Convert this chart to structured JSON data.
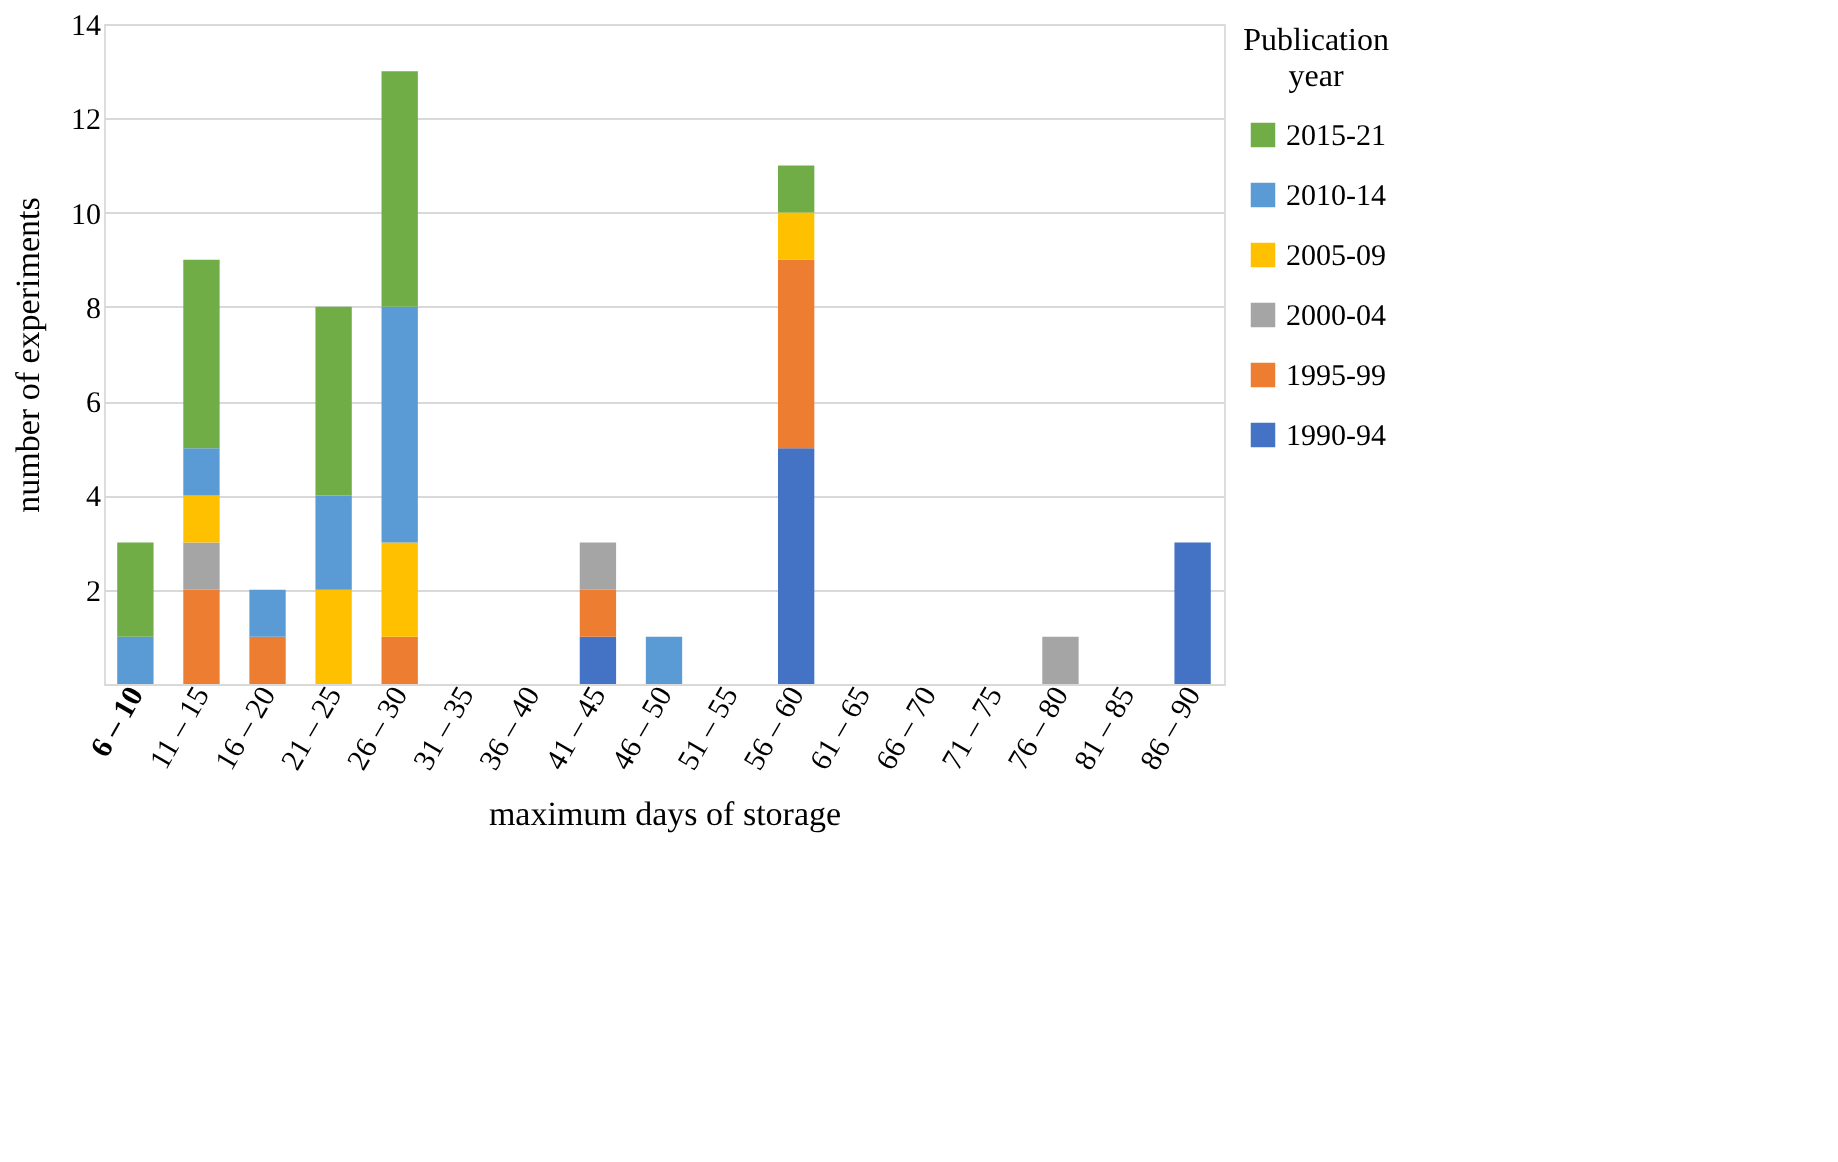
{
  "chart_data": {
    "type": "bar",
    "stacked": true,
    "xlabel": "maximum days of storage",
    "ylabel": "number of experiments",
    "legend_title": "Publication year",
    "legend": "top right",
    "grid": "y",
    "categories": [
      "6 – 10",
      "11 – 15",
      "16 – 20",
      "21 – 25",
      "26 – 30",
      "31 – 35",
      "36 – 40",
      "41 – 45",
      "46 – 50",
      "51 – 55",
      "56 – 60",
      "61 – 65",
      "66 – 70",
      "71 – 75",
      "76 – 80",
      "81 – 85",
      "86 – 90"
    ],
    "ylim": [
      0,
      14
    ],
    "yticks": [
      2,
      4,
      6,
      8,
      10,
      12,
      14
    ],
    "series": [
      {
        "name": "1990-94",
        "color": "#4472c4",
        "values": [
          null,
          null,
          null,
          null,
          null,
          null,
          null,
          1,
          null,
          null,
          5,
          null,
          null,
          null,
          null,
          null,
          3
        ]
      },
      {
        "name": "1995-99",
        "color": "#ed7d31",
        "values": [
          null,
          2,
          1,
          null,
          1,
          null,
          null,
          1,
          null,
          null,
          4,
          null,
          null,
          null,
          null,
          null,
          null
        ]
      },
      {
        "name": "2000-04",
        "color": "#a5a5a5",
        "values": [
          null,
          1,
          null,
          null,
          null,
          null,
          null,
          1,
          null,
          null,
          null,
          null,
          null,
          null,
          1,
          null,
          null
        ]
      },
      {
        "name": "2005-09",
        "color": "#ffc000",
        "values": [
          null,
          1,
          null,
          2,
          2,
          null,
          null,
          null,
          null,
          null,
          1,
          null,
          null,
          null,
          null,
          null,
          null
        ]
      },
      {
        "name": "2010-14",
        "color": "#5b9bd5",
        "values": [
          1,
          1,
          1,
          2,
          5,
          null,
          null,
          null,
          1,
          null,
          null,
          null,
          null,
          null,
          null,
          null,
          null
        ]
      },
      {
        "name": "2015-21",
        "color": "#70ad47",
        "values": [
          2,
          4,
          null,
          4,
          5,
          null,
          null,
          null,
          null,
          null,
          1,
          null,
          null,
          null,
          null,
          null,
          null
        ]
      }
    ]
  }
}
